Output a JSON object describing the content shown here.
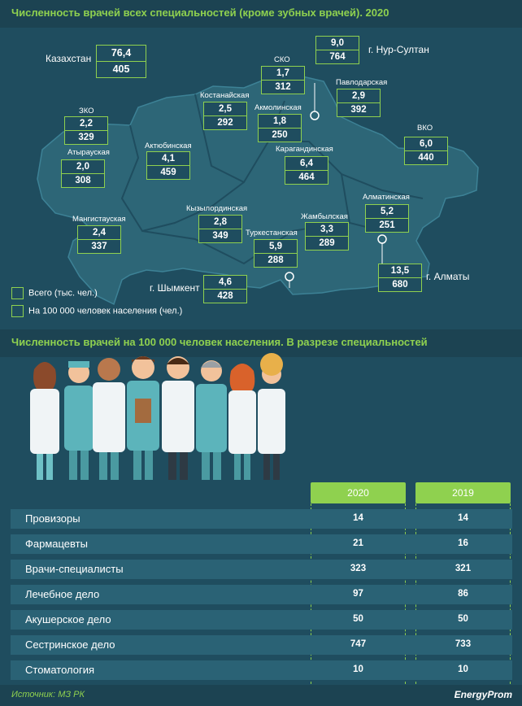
{
  "map_title": "Численность врачей всех специальностей (кроме зубных врачей). 2020",
  "table_title": "Численность врачей на 100 000 человек населения. В разрезе специальностей",
  "legend": {
    "total": "Всего (тыс. чел.)",
    "per100k": "На 100 000 человек населения (чел.)"
  },
  "kazakhstan": {
    "name": "Казахстан",
    "total": "76,4",
    "per100k": "405"
  },
  "regions": [
    {
      "name": "ЗКО",
      "total": "2,2",
      "per100k": "329"
    },
    {
      "name": "Атырауская",
      "total": "2,0",
      "per100k": "308"
    },
    {
      "name": "Мангистауская",
      "total": "2,4",
      "per100k": "337"
    },
    {
      "name": "Актюбинская",
      "total": "4,1",
      "per100k": "459"
    },
    {
      "name": "Костанайская",
      "total": "2,5",
      "per100k": "292"
    },
    {
      "name": "СКО",
      "total": "1,7",
      "per100k": "312"
    },
    {
      "name": "Акмолинская",
      "total": "1,8",
      "per100k": "250"
    },
    {
      "name": "г. Нур-Султан",
      "total": "9,0",
      "per100k": "764"
    },
    {
      "name": "Павлодарская",
      "total": "2,9",
      "per100k": "392"
    },
    {
      "name": "Карагандинская",
      "total": "6,4",
      "per100k": "464"
    },
    {
      "name": "ВКО",
      "total": "6,0",
      "per100k": "440"
    },
    {
      "name": "Кызылординская",
      "total": "2,8",
      "per100k": "349"
    },
    {
      "name": "Туркестанская",
      "total": "5,9",
      "per100k": "288"
    },
    {
      "name": "Жамбылская",
      "total": "3,3",
      "per100k": "289"
    },
    {
      "name": "Алматинская",
      "total": "5,2",
      "per100k": "251"
    },
    {
      "name": "г. Шымкент",
      "total": "4,6",
      "per100k": "428"
    },
    {
      "name": "г. Алматы",
      "total": "13,5",
      "per100k": "680"
    }
  ],
  "chart_data": {
    "type": "table",
    "columns": [
      "2020",
      "2019"
    ],
    "rows": [
      {
        "label": "Провизоры",
        "values": [
          14,
          14
        ]
      },
      {
        "label": "Фармацевты",
        "values": [
          21,
          16
        ]
      },
      {
        "label": "Врачи-специалисты",
        "values": [
          323,
          321
        ]
      },
      {
        "label": "Лечебное дело",
        "values": [
          97,
          86
        ]
      },
      {
        "label": "Акушерское дело",
        "values": [
          50,
          50
        ]
      },
      {
        "label": "Сестринское дело",
        "values": [
          747,
          733
        ]
      },
      {
        "label": "Стоматология",
        "values": [
          10,
          10
        ]
      }
    ]
  },
  "footer": {
    "source": "Источник: МЗ РК",
    "brand": "EnergyProm"
  },
  "colors": {
    "accent": "#8fd14f",
    "background": "#1f4d5f",
    "map_fill": "#2d6677",
    "row_bg": "#2a6275"
  }
}
